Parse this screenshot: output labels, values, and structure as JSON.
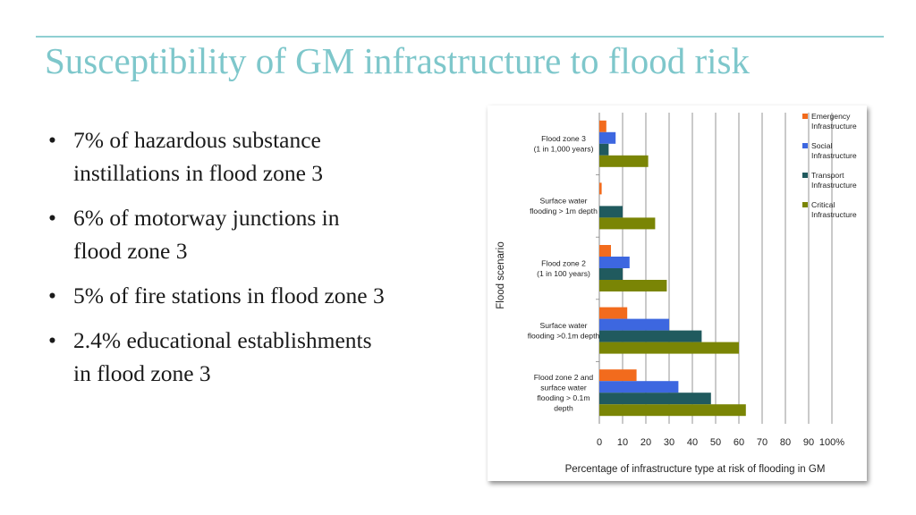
{
  "slide": {
    "title": "Susceptibility of GM infrastructure to flood risk",
    "bullets": [
      {
        "marker": "•",
        "lines": [
          "7% of hazardous substance",
          "instillations in flood zone 3"
        ]
      },
      {
        "marker": "•",
        "lines": [
          "6% of motorway junctions in",
          "flood zone 3"
        ]
      },
      {
        "marker": "•",
        "lines": [
          "5% of fire stations in flood zone 3"
        ]
      },
      {
        "marker": "•",
        "lines": [
          "2.4% educational establishments",
          "in   flood zone 3"
        ]
      }
    ],
    "accent_color": "#7ec7cb"
  },
  "chart_data": {
    "type": "bar",
    "orientation": "horizontal",
    "xlabel": "Percentage of infrastructure type at risk of flooding in GM",
    "ylabel": "Flood scenario",
    "xlim": [
      0,
      100
    ],
    "xticks": [
      "0",
      "10",
      "20",
      "30",
      "40",
      "50",
      "60",
      "70",
      "80",
      "90",
      "100%"
    ],
    "grid": "vertical",
    "legend_position": "right",
    "categories": [
      [
        "Flood zone 3",
        "(1 in 1,000 years)"
      ],
      [
        "Surface water",
        "flooding > 1m depth"
      ],
      [
        "Flood zone 2",
        "(1 in 100 years)"
      ],
      [
        "Surface water",
        "flooding >0.1m depth"
      ],
      [
        "Flood zone 2 and",
        "surface water",
        "flooding > 0.1m",
        "depth"
      ]
    ],
    "series": [
      {
        "name": [
          "Emergency",
          "Infrastructure"
        ],
        "color": "#f26b1d",
        "values": [
          3,
          1,
          5,
          12,
          16
        ]
      },
      {
        "name": [
          "Social",
          "Infrastructure"
        ],
        "color": "#3d67e0",
        "values": [
          7,
          0,
          13,
          30,
          34
        ]
      },
      {
        "name": [
          "Transport",
          "Infrastructure"
        ],
        "color": "#205a5e",
        "values": [
          4,
          10,
          10,
          44,
          48
        ]
      },
      {
        "name": [
          "Critical",
          "Infrastructure"
        ],
        "color": "#7a8505",
        "values": [
          21,
          24,
          29,
          60,
          63
        ]
      }
    ]
  }
}
